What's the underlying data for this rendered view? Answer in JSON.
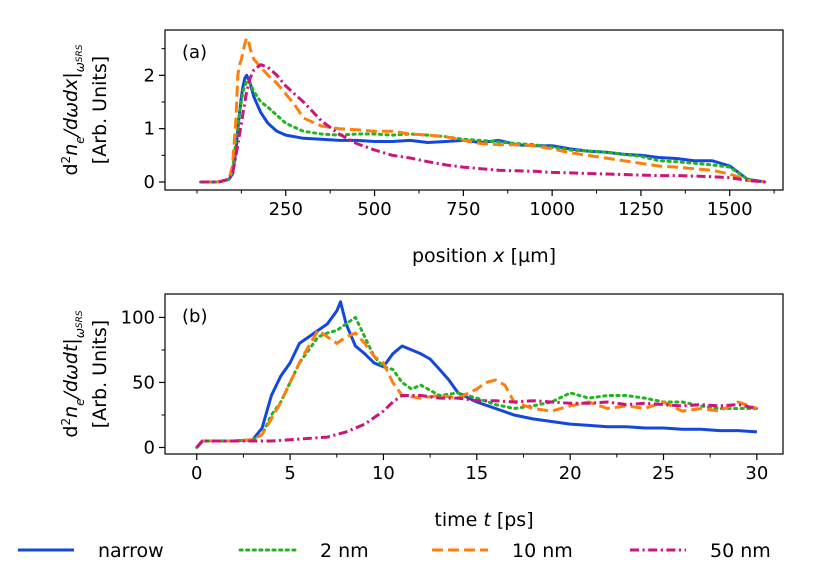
{
  "figure": {
    "legend": {
      "placement": "bottom",
      "items": [
        {
          "label": "narrow",
          "color": "#1448dc",
          "dash": "solid"
        },
        {
          "label": "2 nm",
          "color": "#22b422",
          "dash": "dotted"
        },
        {
          "label": "10 nm",
          "color": "#ff7f0e",
          "dash": "dashed"
        },
        {
          "label": "50 nm",
          "color": "#cc1579",
          "dash": "dashdot"
        }
      ]
    }
  },
  "chart_data": [
    {
      "type": "line",
      "panel_label": "(a)",
      "xlabel": "position x [µm]",
      "ylabel_line1": "d²nₑ/dωdx|ω_SRS",
      "ylabel_line2": "[Arb. Units]",
      "xlim": [
        -90,
        1650
      ],
      "ylim": [
        -0.15,
        2.85
      ],
      "xticks": [
        250,
        500,
        750,
        1000,
        1250,
        1500
      ],
      "yticks": [
        0,
        1,
        2
      ],
      "grid": false,
      "series": [
        {
          "name": "narrow",
          "x": [
            10,
            60,
            90,
            100,
            110,
            115,
            120,
            125,
            130,
            135,
            140,
            150,
            160,
            170,
            180,
            190,
            200,
            225,
            250,
            300,
            350,
            400,
            450,
            500,
            550,
            600,
            650,
            700,
            750,
            800,
            850,
            900,
            950,
            1000,
            1050,
            1100,
            1150,
            1200,
            1250,
            1300,
            1350,
            1400,
            1450,
            1500,
            1550,
            1600
          ],
          "y": [
            0,
            0,
            0.05,
            0.15,
            0.6,
            1.0,
            1.3,
            1.6,
            1.8,
            1.95,
            2.0,
            1.85,
            1.6,
            1.45,
            1.3,
            1.2,
            1.1,
            0.95,
            0.88,
            0.82,
            0.8,
            0.78,
            0.78,
            0.76,
            0.76,
            0.78,
            0.74,
            0.76,
            0.78,
            0.74,
            0.78,
            0.7,
            0.68,
            0.68,
            0.62,
            0.58,
            0.56,
            0.52,
            0.5,
            0.46,
            0.44,
            0.4,
            0.4,
            0.3,
            0.05,
            0
          ]
        },
        {
          "name": "2 nm",
          "x": [
            10,
            60,
            90,
            100,
            110,
            120,
            130,
            140,
            150,
            160,
            170,
            180,
            200,
            225,
            250,
            300,
            350,
            400,
            450,
            500,
            550,
            600,
            650,
            700,
            750,
            800,
            850,
            900,
            950,
            1000,
            1050,
            1100,
            1150,
            1200,
            1250,
            1300,
            1350,
            1400,
            1450,
            1500,
            1550,
            1600
          ],
          "y": [
            0,
            0,
            0.05,
            0.2,
            0.8,
            1.3,
            1.7,
            1.9,
            1.85,
            1.7,
            1.6,
            1.5,
            1.4,
            1.25,
            1.1,
            0.95,
            0.9,
            0.88,
            0.9,
            0.9,
            0.88,
            0.9,
            0.88,
            0.85,
            0.8,
            0.78,
            0.75,
            0.72,
            0.7,
            0.65,
            0.6,
            0.58,
            0.56,
            0.52,
            0.48,
            0.4,
            0.38,
            0.35,
            0.32,
            0.28,
            0.05,
            0
          ]
        },
        {
          "name": "10 nm",
          "x": [
            10,
            60,
            90,
            100,
            110,
            115,
            120,
            125,
            130,
            135,
            140,
            145,
            150,
            160,
            180,
            200,
            225,
            250,
            275,
            300,
            350,
            400,
            450,
            500,
            550,
            600,
            650,
            700,
            750,
            800,
            850,
            900,
            950,
            1000,
            1050,
            1100,
            1150,
            1200,
            1250,
            1300,
            1350,
            1400,
            1450,
            1500,
            1550,
            1600
          ],
          "y": [
            0,
            0,
            0.05,
            0.3,
            1.2,
            2.0,
            2.2,
            2.3,
            2.45,
            2.6,
            2.7,
            2.65,
            2.5,
            2.3,
            2.15,
            2.0,
            1.85,
            1.65,
            1.45,
            1.2,
            1.05,
            1.0,
            0.98,
            0.95,
            0.95,
            0.9,
            0.88,
            0.85,
            0.78,
            0.72,
            0.7,
            0.7,
            0.68,
            0.62,
            0.55,
            0.5,
            0.45,
            0.4,
            0.35,
            0.3,
            0.28,
            0.25,
            0.22,
            0.15,
            0.03,
            0
          ]
        },
        {
          "name": "50 nm",
          "x": [
            10,
            60,
            90,
            100,
            110,
            120,
            130,
            140,
            150,
            160,
            170,
            180,
            200,
            225,
            250,
            300,
            350,
            400,
            450,
            500,
            550,
            600,
            650,
            700,
            750,
            800,
            850,
            900,
            950,
            1000,
            1050,
            1100,
            1150,
            1200,
            1250,
            1300,
            1350,
            1400,
            1450,
            1500,
            1550,
            1600
          ],
          "y": [
            0,
            0,
            0.05,
            0.15,
            0.5,
            0.9,
            1.3,
            1.7,
            1.95,
            2.1,
            2.15,
            2.2,
            2.15,
            2.0,
            1.8,
            1.5,
            1.15,
            0.9,
            0.72,
            0.6,
            0.5,
            0.45,
            0.38,
            0.32,
            0.28,
            0.25,
            0.22,
            0.21,
            0.2,
            0.18,
            0.17,
            0.16,
            0.15,
            0.14,
            0.13,
            0.12,
            0.12,
            0.11,
            0.1,
            0.08,
            0.03,
            0
          ]
        }
      ]
    },
    {
      "type": "line",
      "panel_label": "(b)",
      "xlabel": "time t [ps]",
      "ylabel_line1": "d²nₑ/dωdt|ω_SRS",
      "ylabel_line2": "[Arb. Units]",
      "xlim": [
        -1.7,
        31.4
      ],
      "ylim": [
        -5,
        118
      ],
      "xticks": [
        0,
        5,
        10,
        15,
        20,
        25,
        30
      ],
      "yticks": [
        0,
        50,
        100
      ],
      "grid": false,
      "series": [
        {
          "name": "narrow",
          "x": [
            0,
            0.3,
            1,
            2,
            3,
            3.5,
            4,
            4.5,
            5,
            5.5,
            6,
            6.5,
            7,
            7.5,
            7.7,
            8,
            8.5,
            9,
            9.5,
            10,
            10.5,
            11,
            11.5,
            12,
            12.5,
            13,
            13.5,
            14,
            15,
            16,
            17,
            18,
            19,
            20,
            21,
            22,
            23,
            24,
            25,
            26,
            27,
            28,
            29,
            30
          ],
          "y": [
            0,
            5,
            5,
            5,
            6,
            15,
            40,
            55,
            65,
            80,
            85,
            90,
            95,
            105,
            112,
            95,
            78,
            72,
            65,
            62,
            72,
            78,
            75,
            72,
            68,
            60,
            52,
            42,
            35,
            30,
            25,
            22,
            20,
            18,
            17,
            16,
            16,
            15,
            15,
            14,
            14,
            13,
            13,
            12
          ]
        },
        {
          "name": "2 nm",
          "x": [
            0,
            0.3,
            1,
            2,
            3,
            3.5,
            4,
            4.5,
            5,
            5.5,
            6,
            6.5,
            7,
            7.5,
            8,
            8.5,
            9,
            9.5,
            10,
            10.5,
            11,
            11.5,
            12,
            13,
            14,
            15,
            16,
            17,
            18,
            19,
            20,
            21,
            22,
            23,
            24,
            25,
            26,
            27,
            28,
            29,
            30
          ],
          "y": [
            0,
            5,
            5,
            5,
            6,
            10,
            25,
            35,
            50,
            65,
            75,
            85,
            88,
            90,
            95,
            100,
            85,
            70,
            62,
            60,
            50,
            45,
            48,
            40,
            42,
            38,
            33,
            30,
            32,
            35,
            42,
            38,
            40,
            40,
            38,
            35,
            35,
            32,
            30,
            30,
            30
          ]
        },
        {
          "name": "10 nm",
          "x": [
            0,
            0.3,
            1,
            2,
            3,
            3.5,
            4,
            4.5,
            5,
            5.5,
            6,
            6.5,
            7,
            7.5,
            8,
            8.5,
            9,
            9.5,
            10,
            10.5,
            11,
            12,
            13,
            14,
            15,
            15.5,
            16,
            16.5,
            17,
            18,
            19,
            20,
            21,
            22,
            23,
            24,
            25,
            26,
            27,
            28,
            29,
            30
          ],
          "y": [
            0,
            5,
            5,
            5,
            6,
            10,
            22,
            35,
            50,
            65,
            78,
            90,
            85,
            80,
            85,
            88,
            80,
            70,
            65,
            50,
            40,
            38,
            40,
            38,
            45,
            50,
            52,
            48,
            35,
            30,
            28,
            32,
            35,
            30,
            32,
            30,
            35,
            28,
            30,
            28,
            35,
            30
          ]
        },
        {
          "name": "50 nm",
          "x": [
            0,
            0.3,
            1,
            2,
            3,
            4,
            5,
            6,
            7,
            8,
            9,
            10,
            10.5,
            11,
            12,
            13,
            14,
            15,
            16,
            17,
            18,
            19,
            20,
            21,
            22,
            23,
            24,
            25,
            26,
            27,
            28,
            29,
            30
          ],
          "y": [
            0,
            5,
            5,
            5,
            5,
            5,
            6,
            7,
            8,
            12,
            18,
            28,
            35,
            40,
            40,
            38,
            38,
            36,
            36,
            35,
            36,
            35,
            34,
            34,
            35,
            33,
            34,
            33,
            32,
            33,
            32,
            33,
            30
          ]
        }
      ]
    }
  ]
}
